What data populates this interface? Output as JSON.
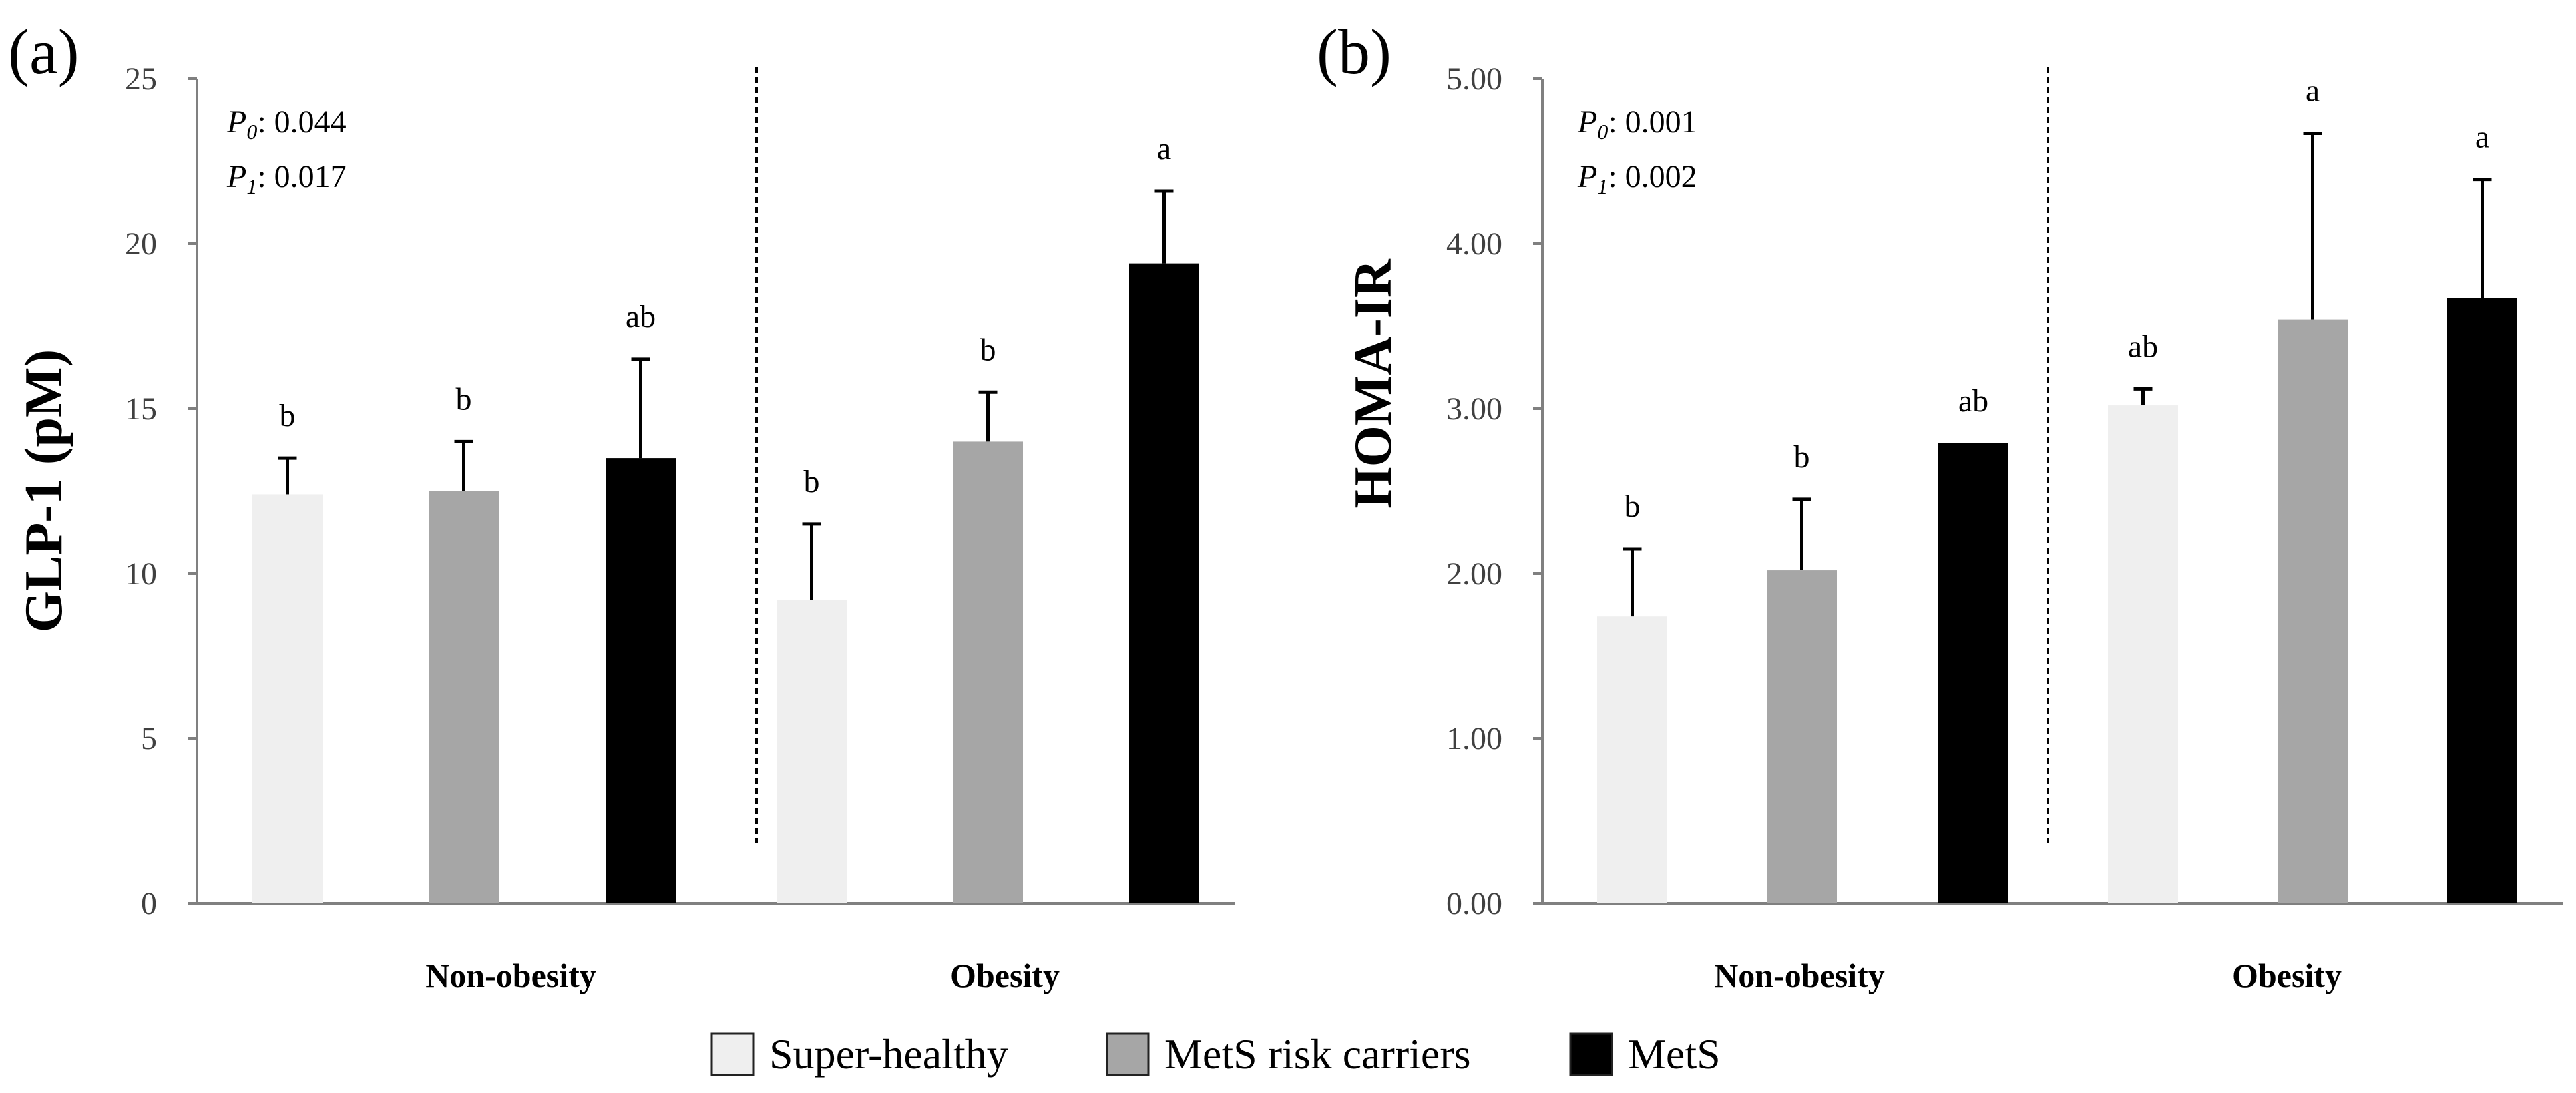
{
  "legend": [
    {
      "label": "Super-healthy",
      "color": "#efefef"
    },
    {
      "label": "MetS risk carriers",
      "color": "#a6a6a6"
    },
    {
      "label": "MetS",
      "color": "#000000"
    }
  ],
  "chart_data": [
    {
      "type": "bar",
      "panel_label": "(a)",
      "ylabel": "GLP-1 (pM)",
      "ylim": [
        0,
        25
      ],
      "yticks": [
        "0",
        "5",
        "10",
        "15",
        "20",
        "25"
      ],
      "ytick_values": [
        0,
        5,
        10,
        15,
        20,
        25
      ],
      "categories": [
        "Non-obesity",
        "Obesity"
      ],
      "p_values": [
        {
          "symbol": "P",
          "sub": "0",
          "text": ": 0.044"
        },
        {
          "symbol": "P",
          "sub": "1",
          "text": ": 0.017"
        }
      ],
      "series": [
        {
          "name": "Super-healthy",
          "values": [
            12.4,
            9.2
          ],
          "errors": [
            1.1,
            2.3
          ],
          "labels": [
            "b",
            "b"
          ]
        },
        {
          "name": "MetS risk carriers",
          "values": [
            12.5,
            14.0
          ],
          "errors": [
            1.5,
            1.5
          ],
          "labels": [
            "b",
            "b"
          ]
        },
        {
          "name": "MetS",
          "values": [
            13.5,
            19.4
          ],
          "errors": [
            3.0,
            2.2
          ],
          "labels": [
            "ab",
            "a"
          ]
        }
      ]
    },
    {
      "type": "bar",
      "panel_label": "(b)",
      "ylabel": "HOMA-IR",
      "ylim": [
        0,
        5
      ],
      "yticks": [
        "0.00",
        "1.00",
        "2.00",
        "3.00",
        "4.00",
        "5.00"
      ],
      "ytick_values": [
        0,
        1,
        2,
        3,
        4,
        5
      ],
      "categories": [
        "Non-obesity",
        "Obesity"
      ],
      "p_values": [
        {
          "symbol": "P",
          "sub": "0",
          "text": ": 0.001"
        },
        {
          "symbol": "P",
          "sub": "1",
          "text": ": 0.002"
        }
      ],
      "series": [
        {
          "name": "Super-healthy",
          "values": [
            1.74,
            3.02
          ],
          "errors": [
            0.41,
            0.1
          ],
          "labels": [
            "b",
            "ab"
          ]
        },
        {
          "name": "MetS risk carriers",
          "values": [
            2.02,
            3.54
          ],
          "errors": [
            0.43,
            1.13
          ],
          "labels": [
            "b",
            "a"
          ]
        },
        {
          "name": "MetS",
          "values": [
            2.79,
            3.67
          ],
          "errors": [
            0.0,
            0.72
          ],
          "labels": [
            "ab",
            "a"
          ]
        }
      ]
    }
  ]
}
